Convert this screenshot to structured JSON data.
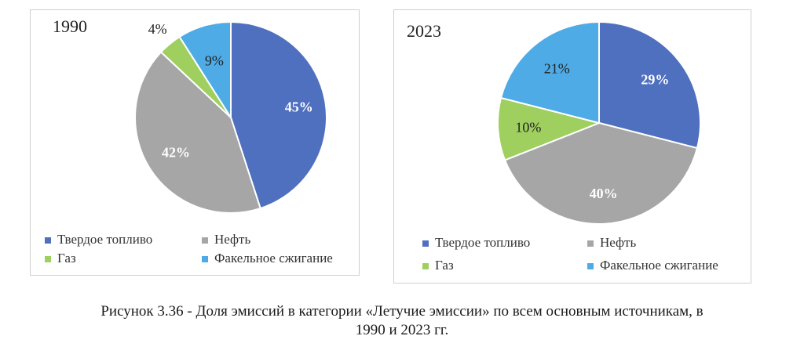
{
  "chart_data": [
    {
      "type": "pie",
      "title": "1990",
      "categories": [
        "Твердое топливо",
        "Нефть",
        "Газ",
        "Факельное сжигание"
      ],
      "values": [
        45,
        42,
        4,
        9
      ],
      "labels": [
        "45%",
        "42%",
        "4%",
        "9%"
      ],
      "legend": {
        "placement": "bottom",
        "entries": [
          "Твердое топливо",
          "Нефть",
          "Газ",
          "Факельное сжигание"
        ]
      }
    },
    {
      "type": "pie",
      "title": "2023",
      "categories": [
        "Твердое топливо",
        "Нефть",
        "Газ",
        "Факельное сжигание"
      ],
      "values": [
        29,
        40,
        10,
        21
      ],
      "labels": [
        "29%",
        "40%",
        "10%",
        "21%"
      ],
      "legend": {
        "placement": "bottom",
        "entries": [
          "Твердое топливо",
          "Нефть",
          "Газ",
          "Факельное сжигание"
        ]
      }
    }
  ],
  "colors": {
    "solid_fuel": "#4f6fbf",
    "oil": "#a6a6a6",
    "gas": "#9fcf5f",
    "flaring": "#4eabe6"
  },
  "caption": {
    "line1": "Рисунок 3.36 - Доля эмиссий в категории «Летучие эмиссии» по всем основным источникам, в",
    "line2": "1990 и 2023 гг."
  }
}
